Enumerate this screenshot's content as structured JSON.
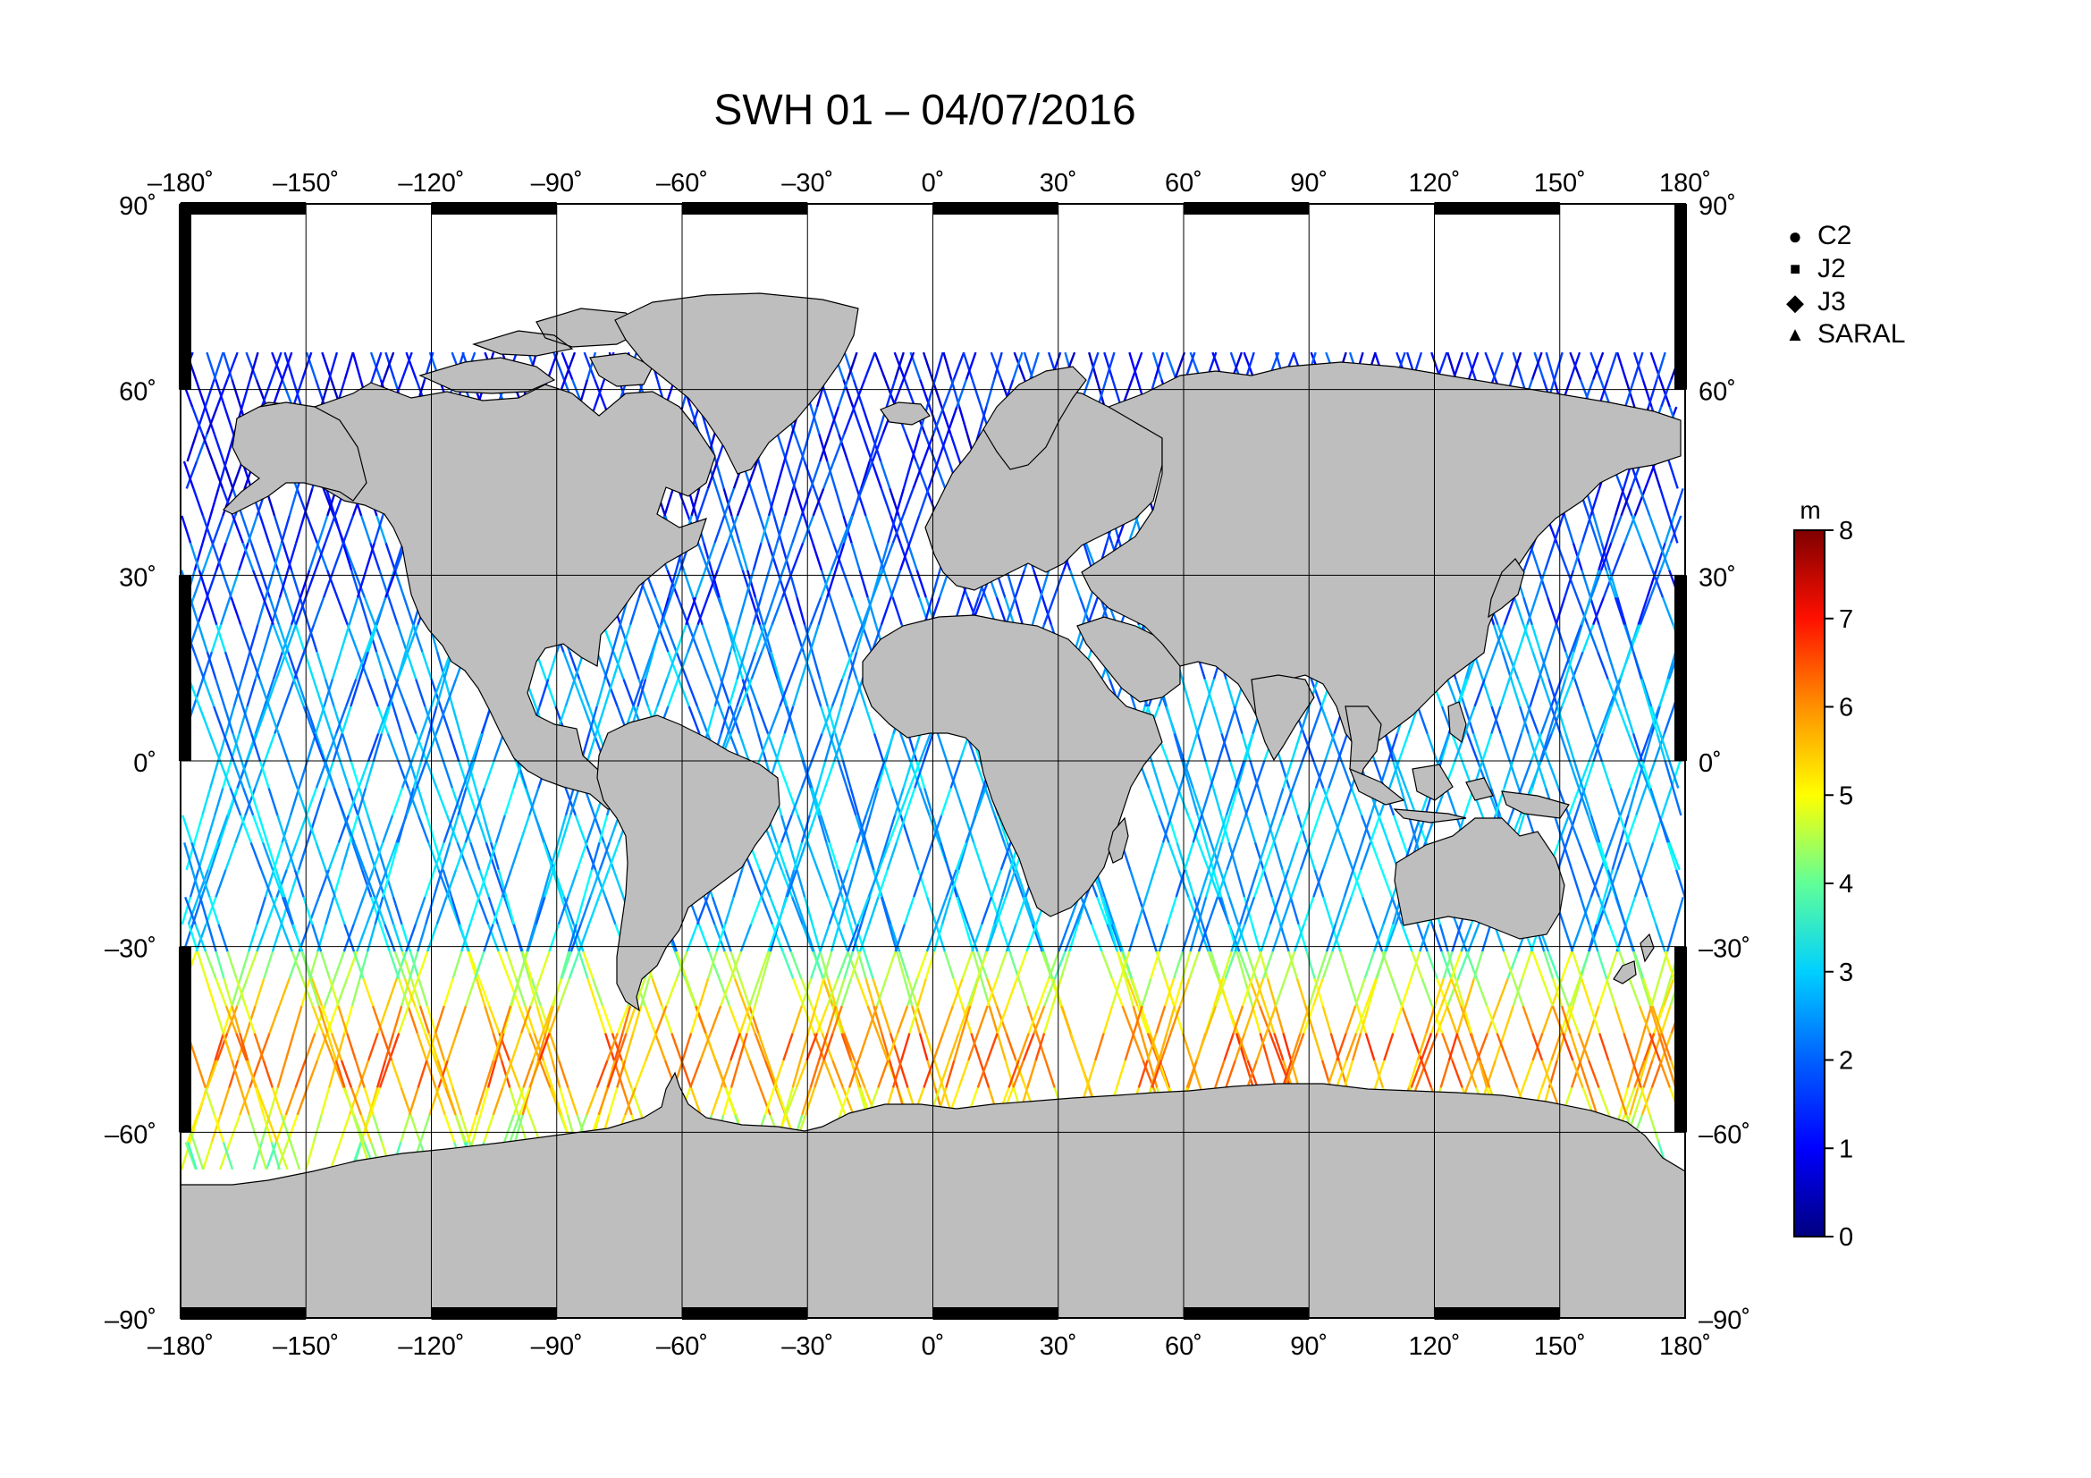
{
  "title": "SWH 01 – 04/07/2016",
  "map": {
    "lon_ticks": [
      "–180˚",
      "–150˚",
      "–120˚",
      "–90˚",
      "–60˚",
      "–30˚",
      "0˚",
      "30˚",
      "60˚",
      "90˚",
      "120˚",
      "150˚",
      "180˚"
    ],
    "lat_ticks": [
      "90˚",
      "60˚",
      "30˚",
      "0˚",
      "–30˚",
      "–60˚",
      "–90˚"
    ],
    "lon_range": [
      -180,
      180
    ],
    "lat_range": [
      -90,
      90
    ],
    "grid": true,
    "colors": {
      "land": "#bebebe",
      "ocean": "#ffffff",
      "grid": "#000000",
      "frame": "#000000"
    }
  },
  "legend": {
    "items": [
      {
        "label": "C2",
        "symbol": "●",
        "icon": "circle-icon"
      },
      {
        "label": "J2",
        "symbol": "■",
        "icon": "square-icon"
      },
      {
        "label": "J3",
        "symbol": "◆",
        "icon": "diamond-icon"
      },
      {
        "label": "SARAL",
        "symbol": "▲",
        "icon": "triangle-icon"
      }
    ]
  },
  "colorbar": {
    "unit": "m",
    "ticks": [
      "0",
      "1",
      "2",
      "3",
      "4",
      "5",
      "6",
      "7",
      "8"
    ],
    "range": [
      0,
      8
    ],
    "colors": [
      "#00007f",
      "#0000ff",
      "#007fff",
      "#00ffff",
      "#7fff7f",
      "#ffff00",
      "#ff7f00",
      "#ff0000",
      "#7f0000"
    ]
  }
}
